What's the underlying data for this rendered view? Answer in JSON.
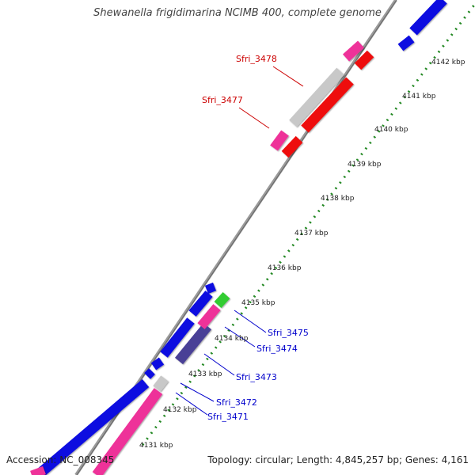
{
  "title": "Shewanella frigidimarina NCIMB 400, complete genome",
  "footer": {
    "accession": "Accession: NC_008345",
    "summary": "Topology: circular; Length: 4,845,257 bp; Genes: 4,161"
  },
  "ruler_labels": [
    "4131 kbp",
    "4132 kbp",
    "4133 kbp",
    "4134 kbp",
    "4135 kbp",
    "4136 kbp",
    "4137 kbp",
    "4138 kbp",
    "4139 kbp",
    "4140 kbp",
    "4141 kbp",
    "4142 kbp"
  ],
  "gene_labels": {
    "sfri_3478": "Sfri_3478",
    "sfri_3477": "Sfri_3477",
    "sfri_3475": "Sfri_3475",
    "sfri_3474": "Sfri_3474",
    "sfri_3473": "Sfri_3473",
    "sfri_3472": "Sfri_3472",
    "sfri_3471": "Sfri_3471"
  },
  "colors": {
    "red_label": "#cc0000",
    "blue_label": "#0000cc",
    "blue_gene": "#1010e0",
    "pink_gene": "#ee3399",
    "red_gene": "#ee1111",
    "gray_gene": "#c8c8c8",
    "green_gene": "#33cc33",
    "purple_gene": "#4a4096",
    "axis": "#999999",
    "ruler": "#228822"
  }
}
